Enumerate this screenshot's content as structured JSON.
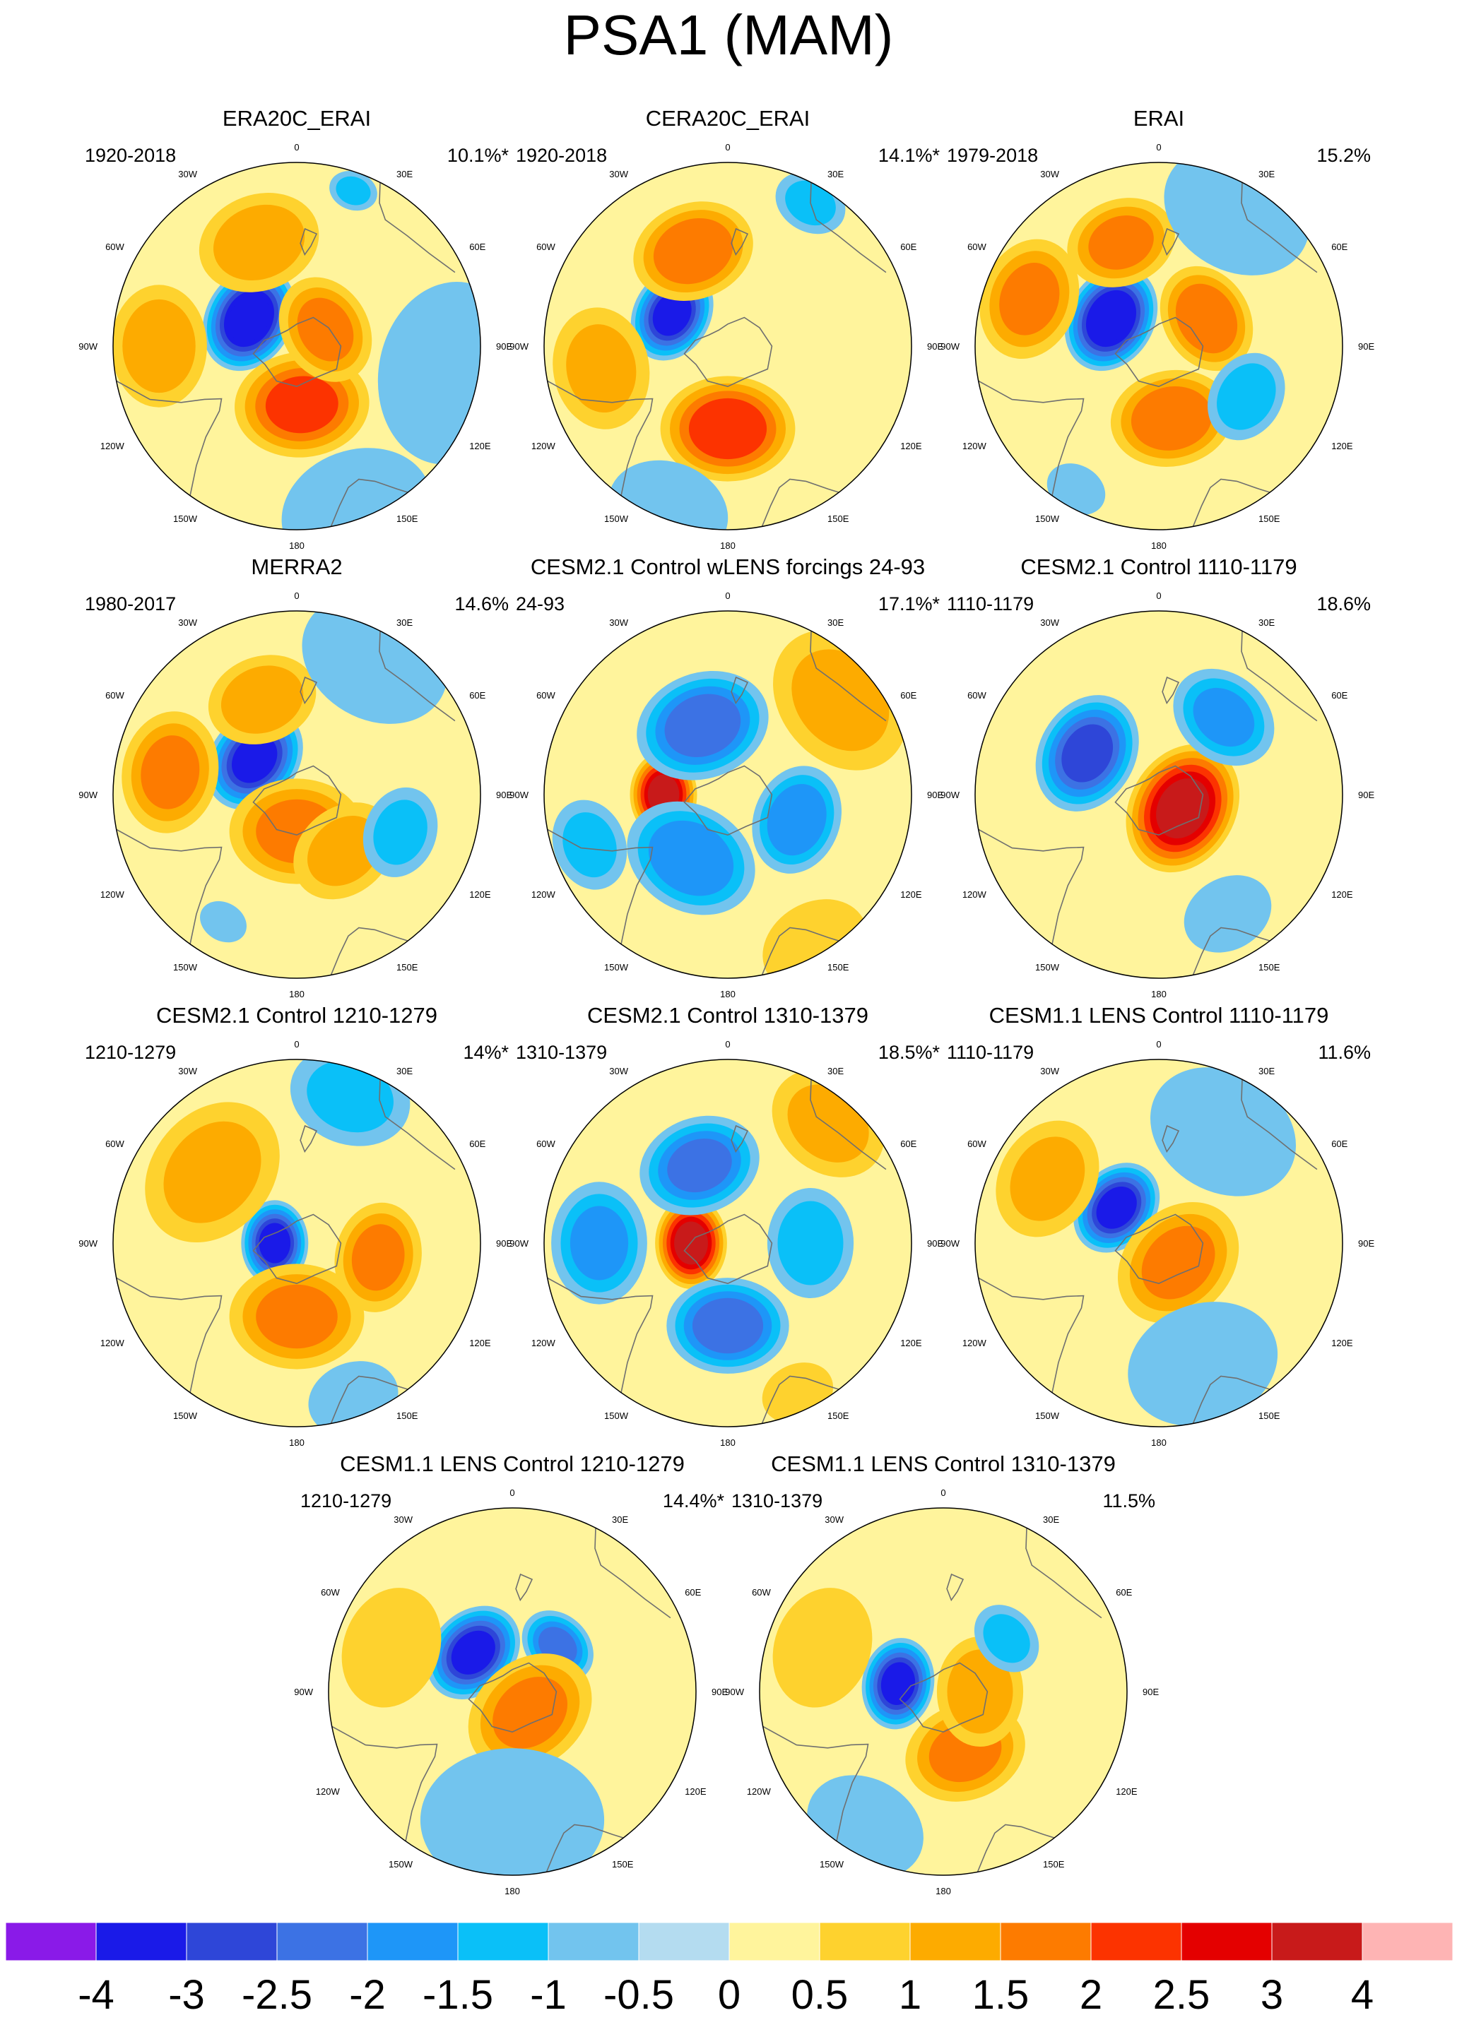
{
  "figure_title": "PSA1 (MAM)",
  "longitude_labels": [
    "0",
    "30E",
    "60E",
    "90E",
    "120E",
    "150E",
    "180",
    "150W",
    "120W",
    "90W",
    "60W",
    "30W"
  ],
  "chart_data": {
    "type": "contour-map",
    "projection": "south-polar-stereographic",
    "title": "PSA1 (MAM)",
    "panels": [
      {
        "title": "ERA20C_ERAI",
        "period": "1920-2018",
        "variance_explained": "10.1%*",
        "features": [
          {
            "lon": 240,
            "r": 0.3,
            "value": -3.5,
            "size": 0.18
          },
          {
            "lon": 5,
            "r": 0.32,
            "value": 2.0,
            "size": 0.22
          },
          {
            "lon": 120,
            "r": 0.18,
            "value": 1.5,
            "size": 0.18
          },
          {
            "lon": 270,
            "r": 0.75,
            "value": 1.2,
            "size": 0.2
          },
          {
            "lon": 200,
            "r": 0.6,
            "value": 1.2,
            "size": 0.2
          },
          {
            "lon": 80,
            "r": 0.85,
            "value": -0.6,
            "size": 0.3
          },
          {
            "lon": 20,
            "r": 0.95,
            "value": -0.6,
            "size": 0.25
          },
          {
            "lon": 160,
            "r": 0.9,
            "value": -1.0,
            "size": 0.08
          }
        ]
      },
      {
        "title": "CERA20C_ERAI",
        "period": "1920-2018",
        "variance_explained": "14.1%*",
        "features": [
          {
            "lon": 240,
            "r": 0.35,
            "value": -3.0,
            "size": 0.16
          },
          {
            "lon": 0,
            "r": 0.45,
            "value": 2.2,
            "size": 0.22
          },
          {
            "lon": 200,
            "r": 0.55,
            "value": 1.8,
            "size": 0.2
          },
          {
            "lon": 280,
            "r": 0.7,
            "value": 1.0,
            "size": 0.2
          },
          {
            "lon": 90,
            "r": 0.25,
            "value": 0.4,
            "size": 0.15
          },
          {
            "lon": 150,
            "r": 0.9,
            "value": -1.0,
            "size": 0.12
          },
          {
            "lon": 340,
            "r": 0.95,
            "value": -0.6,
            "size": 0.2
          }
        ]
      },
      {
        "title": "ERAI",
        "period": "1979-2018",
        "variance_explained": "15.2%",
        "features": [
          {
            "lon": 240,
            "r": 0.3,
            "value": -3.5,
            "size": 0.18
          },
          {
            "lon": 10,
            "r": 0.4,
            "value": 1.8,
            "size": 0.2
          },
          {
            "lon": 120,
            "r": 0.3,
            "value": 1.8,
            "size": 0.18
          },
          {
            "lon": 250,
            "r": 0.75,
            "value": 1.5,
            "size": 0.2
          },
          {
            "lon": 200,
            "r": 0.6,
            "value": 1.5,
            "size": 0.18
          },
          {
            "lon": 60,
            "r": 0.55,
            "value": -1.2,
            "size": 0.15
          },
          {
            "lon": 150,
            "r": 0.85,
            "value": -0.6,
            "size": 0.25
          },
          {
            "lon": 330,
            "r": 0.9,
            "value": -0.8,
            "size": 0.1
          }
        ]
      },
      {
        "title": "MERRA2",
        "period": "1980-2017",
        "variance_explained": "14.6%",
        "features": [
          {
            "lon": 230,
            "r": 0.3,
            "value": -3.0,
            "size": 0.18
          },
          {
            "lon": 0,
            "r": 0.2,
            "value": 1.5,
            "size": 0.22
          },
          {
            "lon": 40,
            "r": 0.4,
            "value": 1.0,
            "size": 0.18
          },
          {
            "lon": 260,
            "r": 0.7,
            "value": 1.5,
            "size": 0.2
          },
          {
            "lon": 200,
            "r": 0.55,
            "value": 1.2,
            "size": 0.18
          },
          {
            "lon": 70,
            "r": 0.6,
            "value": -1.0,
            "size": 0.15
          },
          {
            "lon": 150,
            "r": 0.85,
            "value": -0.6,
            "size": 0.25
          },
          {
            "lon": 330,
            "r": 0.8,
            "value": -0.8,
            "size": 0.08
          }
        ]
      },
      {
        "title": "CESM2.1 Control wLENS forcings 24-93",
        "period": "24-93",
        "variance_explained": "17.1%*",
        "features": [
          {
            "lon": 270,
            "r": 0.35,
            "value": 3.0,
            "size": 0.14
          },
          {
            "lon": 200,
            "r": 0.4,
            "value": -2.2,
            "size": 0.22
          },
          {
            "lon": 330,
            "r": 0.4,
            "value": -1.8,
            "size": 0.22
          },
          {
            "lon": 70,
            "r": 0.4,
            "value": -1.8,
            "size": 0.18
          },
          {
            "lon": 130,
            "r": 0.8,
            "value": 1.0,
            "size": 0.25
          },
          {
            "lon": 30,
            "r": 0.95,
            "value": 0.8,
            "size": 0.18
          },
          {
            "lon": 290,
            "r": 0.8,
            "value": -1.0,
            "size": 0.15
          }
        ]
      },
      {
        "title": "CESM2.1 Control 1110-1179",
        "period": "1110-1179",
        "variance_explained": "18.6%",
        "features": [
          {
            "lon": 60,
            "r": 0.15,
            "value": 3.0,
            "size": 0.22
          },
          {
            "lon": 240,
            "r": 0.45,
            "value": -2.5,
            "size": 0.2
          },
          {
            "lon": 140,
            "r": 0.55,
            "value": -1.5,
            "size": 0.18
          },
          {
            "lon": 30,
            "r": 0.75,
            "value": -0.8,
            "size": 0.15
          },
          {
            "lon": 200,
            "r": 0.8,
            "value": 0.4,
            "size": 0.25
          }
        ]
      },
      {
        "title": "CESM2.1 Control 1210-1279",
        "period": "1210-1279",
        "variance_explained": "14%*",
        "features": [
          {
            "lon": 270,
            "r": 0.12,
            "value": -3.0,
            "size": 0.14
          },
          {
            "lon": 0,
            "r": 0.4,
            "value": 1.5,
            "size": 0.22
          },
          {
            "lon": 80,
            "r": 0.45,
            "value": 1.5,
            "size": 0.18
          },
          {
            "lon": 230,
            "r": 0.6,
            "value": 1.0,
            "size": 0.25
          },
          {
            "lon": 160,
            "r": 0.85,
            "value": -1.0,
            "size": 0.2
          },
          {
            "lon": 20,
            "r": 0.9,
            "value": -0.6,
            "size": 0.15
          }
        ]
      },
      {
        "title": "CESM2.1 Control 1310-1379",
        "period": "1310-1379",
        "variance_explained": "18.5%*",
        "features": [
          {
            "lon": 270,
            "r": 0.2,
            "value": 3.0,
            "size": 0.15
          },
          {
            "lon": 0,
            "r": 0.45,
            "value": -2.2,
            "size": 0.2
          },
          {
            "lon": 200,
            "r": 0.45,
            "value": -2.0,
            "size": 0.2
          },
          {
            "lon": 270,
            "r": 0.7,
            "value": -1.5,
            "size": 0.2
          },
          {
            "lon": 90,
            "r": 0.45,
            "value": -1.2,
            "size": 0.18
          },
          {
            "lon": 140,
            "r": 0.85,
            "value": 1.0,
            "size": 0.2
          },
          {
            "lon": 25,
            "r": 0.9,
            "value": 0.8,
            "size": 0.12
          }
        ]
      },
      {
        "title": "CESM1.1 LENS Control 1110-1179",
        "period": "1110-1179",
        "variance_explained": "11.6%",
        "features": [
          {
            "lon": 230,
            "r": 0.3,
            "value": -3.0,
            "size": 0.16
          },
          {
            "lon": 45,
            "r": 0.15,
            "value": 1.5,
            "size": 0.22
          },
          {
            "lon": 240,
            "r": 0.7,
            "value": 1.0,
            "size": 0.2
          },
          {
            "lon": 80,
            "r": 0.8,
            "value": 0.4,
            "size": 0.2
          },
          {
            "lon": 20,
            "r": 0.7,
            "value": -0.6,
            "size": 0.25
          },
          {
            "lon": 150,
            "r": 0.7,
            "value": -0.6,
            "size": 0.25
          }
        ]
      },
      {
        "title": "CESM1.1 LENS Control 1210-1279",
        "period": "1210-1279",
        "variance_explained": "14.4%*",
        "features": [
          {
            "lon": 225,
            "r": 0.3,
            "value": -3.0,
            "size": 0.17
          },
          {
            "lon": 135,
            "r": 0.35,
            "value": -2.0,
            "size": 0.13
          },
          {
            "lon": 40,
            "r": 0.15,
            "value": 1.5,
            "size": 0.22
          },
          {
            "lon": 250,
            "r": 0.7,
            "value": 0.5,
            "size": 0.2
          },
          {
            "lon": 0,
            "r": 0.7,
            "value": -0.5,
            "size": 0.3
          }
        ]
      },
      {
        "title": "CESM1.1 LENS Control 1310-1379",
        "period": "1310-1379",
        "variance_explained": "11.5%",
        "features": [
          {
            "lon": 260,
            "r": 0.25,
            "value": -3.0,
            "size": 0.15
          },
          {
            "lon": 20,
            "r": 0.35,
            "value": 1.5,
            "size": 0.2
          },
          {
            "lon": 90,
            "r": 0.2,
            "value": 1.2,
            "size": 0.18
          },
          {
            "lon": 130,
            "r": 0.45,
            "value": -1.0,
            "size": 0.12
          },
          {
            "lon": 250,
            "r": 0.7,
            "value": 0.5,
            "size": 0.2
          },
          {
            "lon": 330,
            "r": 0.85,
            "value": -0.6,
            "size": 0.2
          }
        ]
      }
    ],
    "colorbar": {
      "levels": [
        -4,
        -3,
        -2.5,
        -2,
        -1.5,
        -1,
        -0.5,
        0,
        0.5,
        1,
        1.5,
        2,
        2.5,
        3,
        4
      ],
      "tick_labels": [
        "-4",
        "-3",
        "-2.5",
        "-2",
        "-1.5",
        "-1",
        "-0.5",
        "0",
        "0.5",
        "1",
        "1.5",
        "2",
        "2.5",
        "3",
        "4"
      ],
      "colors": [
        "#8a1ae8",
        "#1a1ae8",
        "#2e46d8",
        "#3c72e4",
        "#1e96f8",
        "#0ac0f8",
        "#72c4ee",
        "#b4dcf0",
        "#fff49c",
        "#fed22e",
        "#fdab00",
        "#fd7b00",
        "#fc3300",
        "#e40000",
        "#c81a1a",
        "#feb4b4"
      ]
    }
  }
}
